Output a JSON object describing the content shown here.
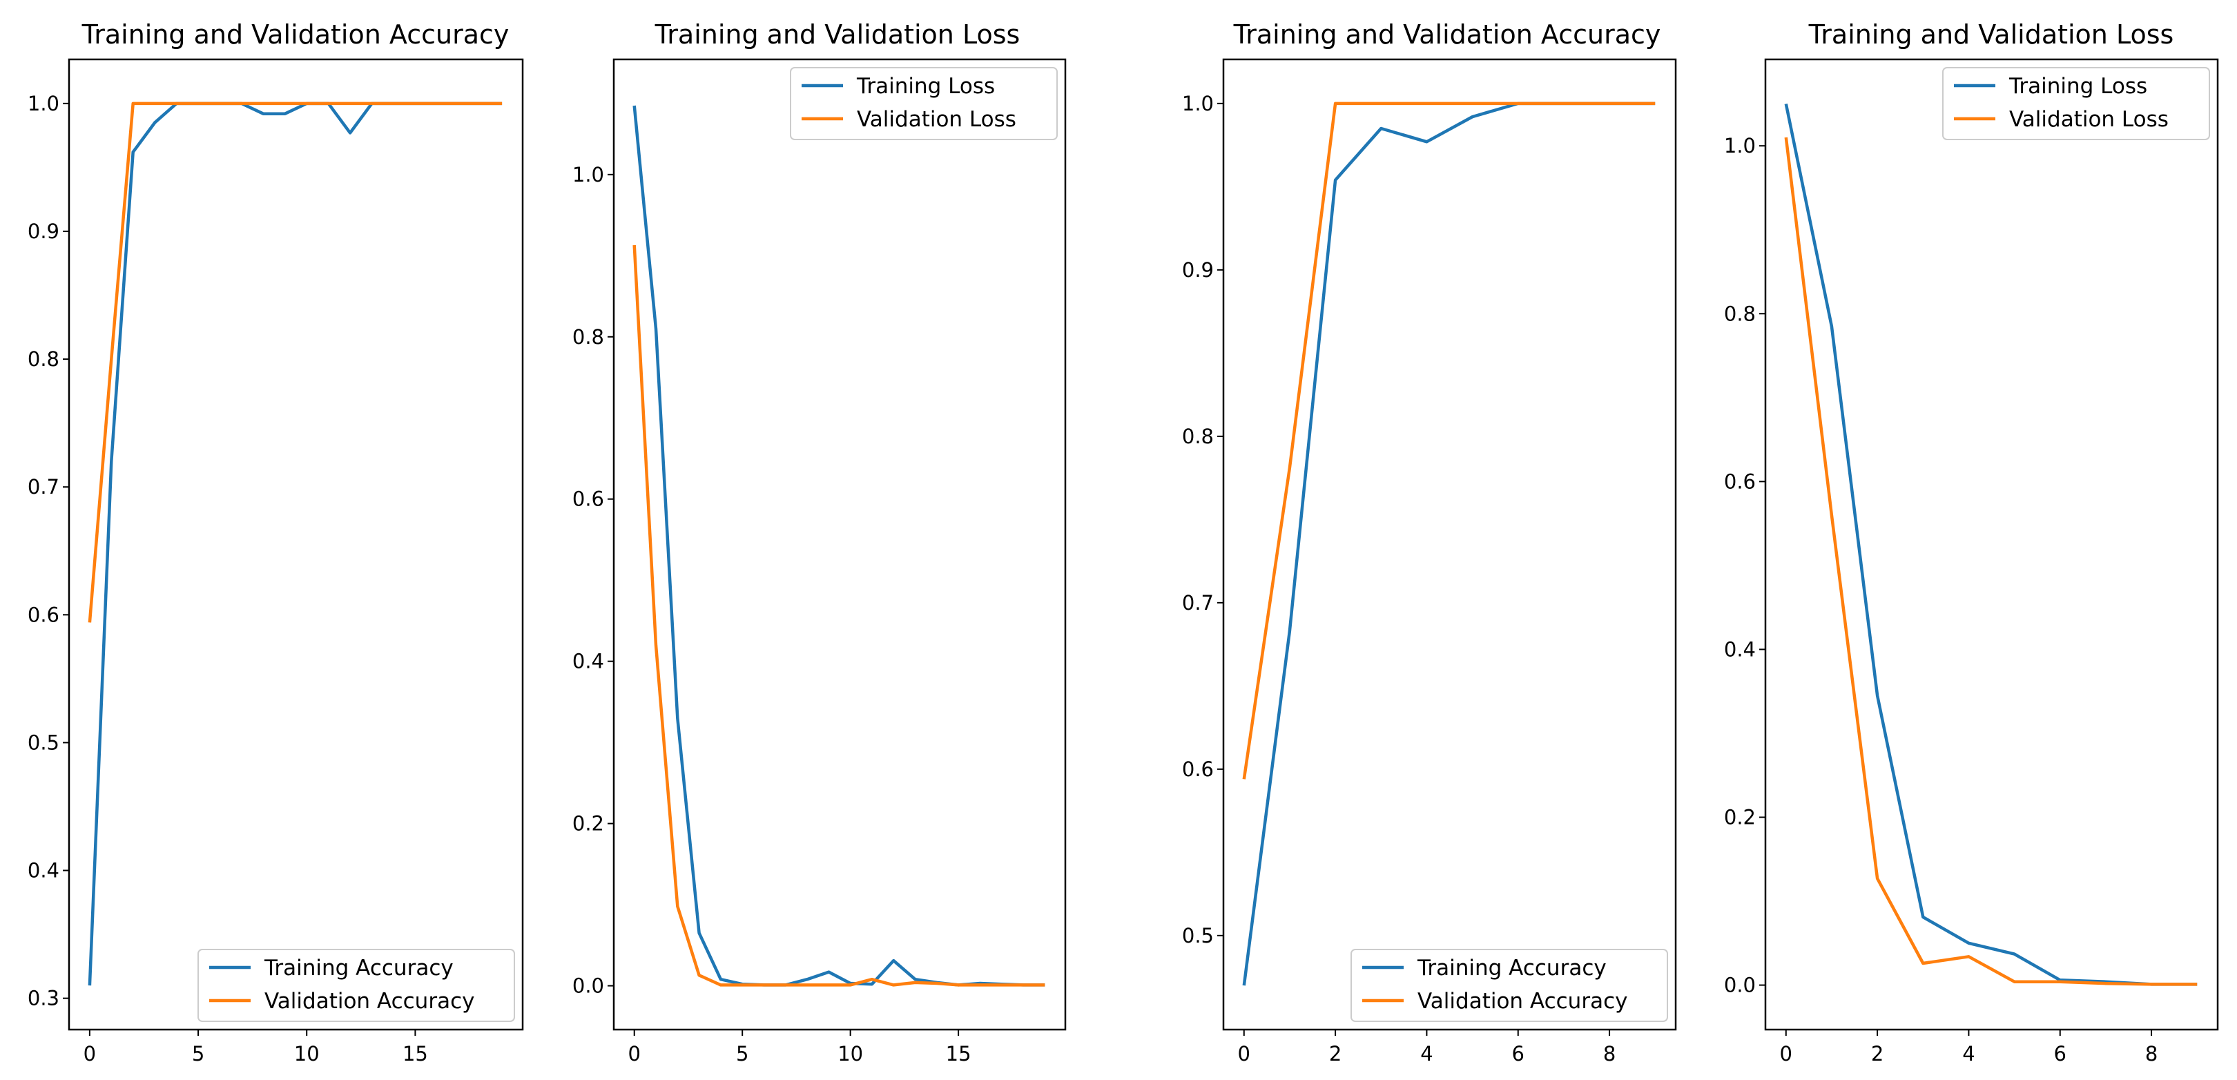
{
  "colors": {
    "training": "#1f77b4",
    "validation": "#ff7f0e"
  },
  "chart_data": [
    {
      "type": "line",
      "title": "Training and Validation Accuracy",
      "xlabel": "",
      "ylabel": "",
      "xlim": [
        -0.95,
        19.95
      ],
      "ylim": [
        0.2755,
        1.0345
      ],
      "xticks": [
        0,
        5,
        10,
        15
      ],
      "yticks": [
        0.3,
        0.4,
        0.5,
        0.6,
        0.7,
        0.8,
        0.9,
        1.0
      ],
      "legend_loc": "lower right",
      "x": [
        0,
        1,
        2,
        3,
        4,
        5,
        6,
        7,
        8,
        9,
        10,
        11,
        12,
        13,
        14,
        15,
        16,
        17,
        18,
        19
      ],
      "series": [
        {
          "name": "Training Accuracy",
          "color_key": "training",
          "values": [
            0.31,
            0.72,
            0.962,
            0.985,
            1.0,
            1.0,
            1.0,
            1.0,
            0.992,
            0.992,
            1.0,
            1.0,
            0.977,
            1.0,
            1.0,
            1.0,
            1.0,
            1.0,
            1.0,
            1.0
          ]
        },
        {
          "name": "Validation Accuracy",
          "color_key": "validation",
          "values": [
            0.594,
            0.8,
            1.0,
            1.0,
            1.0,
            1.0,
            1.0,
            1.0,
            1.0,
            1.0,
            1.0,
            1.0,
            1.0,
            1.0,
            1.0,
            1.0,
            1.0,
            1.0,
            1.0,
            1.0
          ]
        }
      ]
    },
    {
      "type": "line",
      "title": "Training and Validation Loss",
      "xlabel": "",
      "ylabel": "",
      "xlim": [
        -0.95,
        19.95
      ],
      "ylim": [
        -0.054,
        1.142
      ],
      "xticks": [
        0,
        5,
        10,
        15
      ],
      "yticks": [
        0.0,
        0.2,
        0.4,
        0.6,
        0.8,
        1.0
      ],
      "legend_loc": "upper right",
      "x": [
        0,
        1,
        2,
        3,
        4,
        5,
        6,
        7,
        8,
        9,
        10,
        11,
        12,
        13,
        14,
        15,
        16,
        17,
        18,
        19
      ],
      "series": [
        {
          "name": "Training Loss",
          "color_key": "training",
          "values": [
            1.085,
            0.81,
            0.33,
            0.065,
            0.008,
            0.002,
            0.001,
            0.001,
            0.008,
            0.017,
            0.003,
            0.002,
            0.031,
            0.008,
            0.004,
            0.001,
            0.003,
            0.002,
            0.001,
            0.001
          ]
        },
        {
          "name": "Validation Loss",
          "color_key": "validation",
          "values": [
            0.913,
            0.42,
            0.098,
            0.013,
            0.001,
            0.001,
            0.001,
            0.001,
            0.001,
            0.001,
            0.001,
            0.008,
            0.001,
            0.004,
            0.003,
            0.001,
            0.001,
            0.001,
            0.001,
            0.001
          ]
        }
      ]
    },
    {
      "type": "line",
      "title": "Training and Validation Accuracy",
      "xlabel": "",
      "ylabel": "",
      "xlim": [
        -0.45,
        9.45
      ],
      "ylim": [
        0.4435,
        1.0265
      ],
      "xticks": [
        0,
        2,
        4,
        6,
        8
      ],
      "yticks": [
        0.5,
        0.6,
        0.7,
        0.8,
        0.9,
        1.0
      ],
      "legend_loc": "lower right",
      "x": [
        0,
        1,
        2,
        3,
        4,
        5,
        6,
        7,
        8,
        9
      ],
      "series": [
        {
          "name": "Training Accuracy",
          "color_key": "training",
          "values": [
            0.47,
            0.683,
            0.954,
            0.985,
            0.977,
            0.992,
            1.0,
            1.0,
            1.0,
            1.0
          ]
        },
        {
          "name": "Validation Accuracy",
          "color_key": "validation",
          "values": [
            0.594,
            0.781,
            1.0,
            1.0,
            1.0,
            1.0,
            1.0,
            1.0,
            1.0,
            1.0
          ]
        }
      ]
    },
    {
      "type": "line",
      "title": "Training and Validation Loss",
      "xlabel": "",
      "ylabel": "",
      "xlim": [
        -0.45,
        9.45
      ],
      "ylim": [
        -0.053,
        1.103
      ],
      "xticks": [
        0,
        2,
        4,
        6,
        8
      ],
      "yticks": [
        0.0,
        0.2,
        0.4,
        0.6,
        0.8,
        1.0
      ],
      "legend_loc": "upper right",
      "x": [
        0,
        1,
        2,
        3,
        4,
        5,
        6,
        7,
        8,
        9
      ],
      "series": [
        {
          "name": "Training Loss",
          "color_key": "training",
          "values": [
            1.05,
            0.785,
            0.345,
            0.081,
            0.05,
            0.037,
            0.006,
            0.004,
            0.001,
            0.001
          ]
        },
        {
          "name": "Validation Loss",
          "color_key": "validation",
          "values": [
            1.01,
            0.56,
            0.127,
            0.026,
            0.034,
            0.004,
            0.004,
            0.002,
            0.001,
            0.001
          ]
        }
      ]
    }
  ]
}
